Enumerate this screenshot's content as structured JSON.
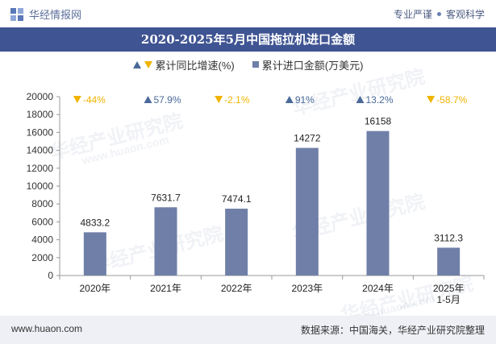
{
  "header": {
    "brand": "华经情报网",
    "tag1": "专业严谨",
    "tag2": "客观科学"
  },
  "title": "2020-2025年5月中国拖拉机进口金额",
  "legend": {
    "growth": "累计同比增速(%)",
    "amount": "累计进口金额(万美元)"
  },
  "footer": {
    "website": "www.huaon.com",
    "source": "数据来源：中国海关，华经产业研究院整理"
  },
  "watermarks": [
    "华经产业研究院",
    "www.huaon.com",
    "华经产业研究院",
    "华经产业研究院",
    "华经产业研究院",
    "www.huaon.com",
    "华经产业研究院"
  ],
  "colors": {
    "bar": "#6f7fa8",
    "up": "#4a6a9a",
    "down": "#f0b400",
    "title_bg": "#3f5492"
  },
  "chart_data": {
    "type": "bar",
    "categories": [
      "2020年",
      "2021年",
      "2022年",
      "2023年",
      "2024年",
      "2025年\n1-5月"
    ],
    "series": [
      {
        "name": "累计进口金额(万美元)",
        "values": [
          4833.2,
          7631.7,
          7474.1,
          14272,
          16158,
          3112.3
        ],
        "labels": [
          "4833.2",
          "7631.7",
          "7474.1",
          "14272",
          "16158",
          "3112.3"
        ]
      },
      {
        "name": "累计同比增速(%)",
        "values": [
          -44,
          57.9,
          -2.1,
          91,
          13.2,
          -58.7
        ],
        "labels": [
          "-44%",
          "57.9%",
          "-2.1%",
          "91%",
          "13.2%",
          "-58.7%"
        ]
      }
    ],
    "yticks": [
      0,
      2000,
      4000,
      6000,
      8000,
      10000,
      12000,
      14000,
      16000,
      18000,
      20000
    ],
    "ylim": [
      0,
      20000
    ]
  }
}
